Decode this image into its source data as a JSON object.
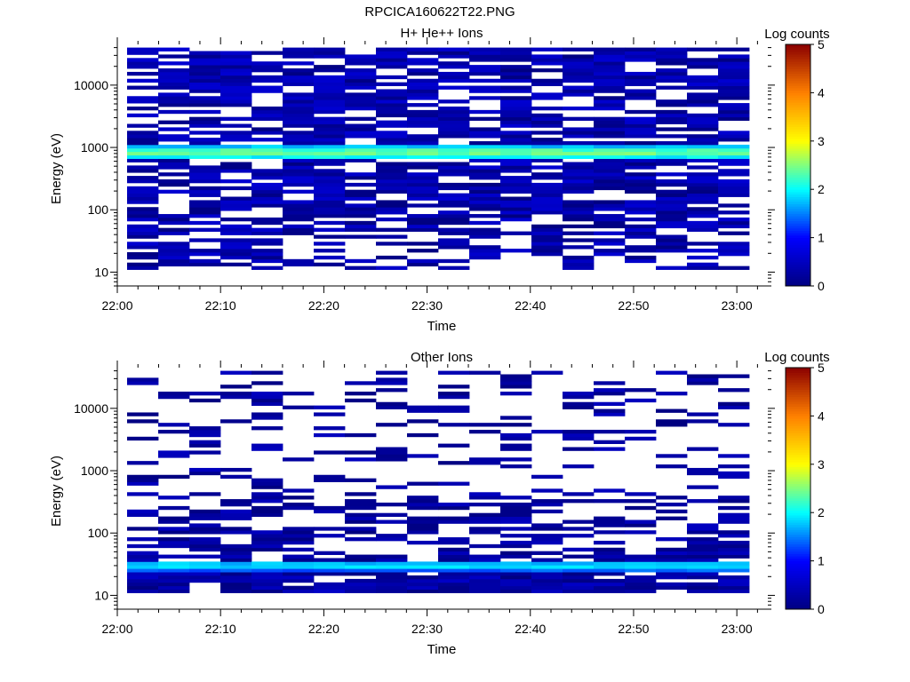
{
  "figure": {
    "title": "RPCICA160622T22.PNG"
  },
  "chart_data": [
    {
      "type": "heatmap",
      "title": "H+ He++ Ions",
      "xlabel": "Time",
      "ylabel": "Energy (eV)",
      "colorbar_label": "Log counts",
      "colorbar_ticks": [
        "0",
        "1",
        "2",
        "3",
        "4",
        "5"
      ],
      "colorbar_range": [
        0,
        5
      ],
      "colormap": [
        "#000080",
        "#0000ff",
        "#00ffff",
        "#ffff00",
        "#ff8000",
        "#8b0000"
      ],
      "y_scale": "log",
      "ylim": [
        6,
        45000
      ],
      "yticks": [
        {
          "value": 10,
          "label": "10"
        },
        {
          "value": 100,
          "label": "100"
        },
        {
          "value": 1000,
          "label": "1000"
        },
        {
          "value": 10000,
          "label": "10000"
        }
      ],
      "xlim": [
        "22:00",
        "23:03"
      ],
      "xticks": [
        "22:00",
        "22:10",
        "22:20",
        "22:30",
        "22:40",
        "22:50",
        "23:00"
      ],
      "time_bins": [
        "22:01",
        "22:04",
        "22:07",
        "22:10",
        "22:13",
        "22:17",
        "22:20",
        "22:23",
        "22:26",
        "22:29",
        "22:33",
        "22:36",
        "22:39",
        "22:42",
        "22:45",
        "22:48",
        "22:52",
        "22:55",
        "22:58",
        "23:01"
      ],
      "energy_range_eV": [
        11,
        40000
      ],
      "summary": "Dominant band of 1.5-2.4 log counts near 700-1000 eV across all times; scattered 0-0.6 log counts elsewhere."
    },
    {
      "type": "heatmap",
      "title": "Other Ions",
      "xlabel": "Time",
      "ylabel": "Energy (eV)",
      "colorbar_label": "Log counts",
      "colorbar_ticks": [
        "0",
        "1",
        "2",
        "3",
        "4",
        "5"
      ],
      "colorbar_range": [
        0,
        5
      ],
      "colormap": [
        "#000080",
        "#0000ff",
        "#00ffff",
        "#ffff00",
        "#ff8000",
        "#8b0000"
      ],
      "y_scale": "log",
      "ylim": [
        6,
        45000
      ],
      "yticks": [
        {
          "value": 10,
          "label": "10"
        },
        {
          "value": 100,
          "label": "100"
        },
        {
          "value": 1000,
          "label": "1000"
        },
        {
          "value": 10000,
          "label": "10000"
        }
      ],
      "xlim": [
        "22:00",
        "23:03"
      ],
      "xticks": [
        "22:00",
        "22:10",
        "22:20",
        "22:30",
        "22:40",
        "22:50",
        "23:00"
      ],
      "time_bins": [
        "22:01",
        "22:04",
        "22:07",
        "22:10",
        "22:13",
        "22:17",
        "22:20",
        "22:23",
        "22:26",
        "22:29",
        "22:33",
        "22:36",
        "22:39",
        "22:42",
        "22:45",
        "22:48",
        "22:52",
        "22:55",
        "22:58",
        "23:01"
      ],
      "energy_range_eV": [
        11,
        40000
      ],
      "summary": "Band of 1.2-1.8 log counts near 25-35 eV across all times; sparse 0-0.6 log counts at higher energies."
    }
  ]
}
